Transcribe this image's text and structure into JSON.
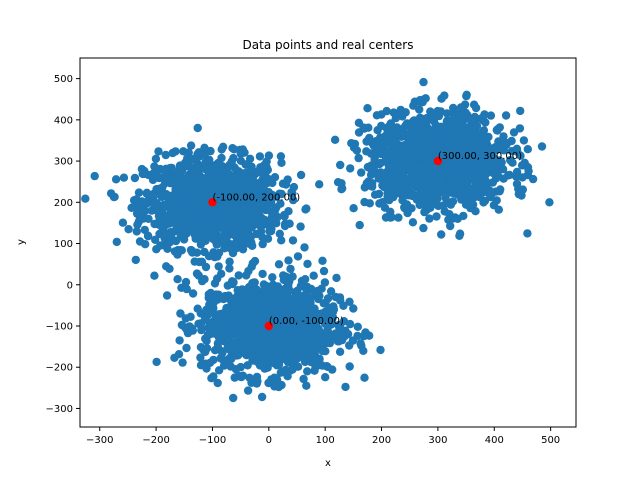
{
  "chart_data": {
    "type": "scatter",
    "title": "Data points and real centers",
    "xlabel": "x",
    "ylabel": "y",
    "xlim": [
      -335,
      545
    ],
    "ylim": [
      -345,
      550
    ],
    "xticks": [
      -300,
      -200,
      -100,
      0,
      100,
      200,
      300,
      400,
      500
    ],
    "yticks": [
      -300,
      -200,
      -100,
      0,
      100,
      200,
      300,
      400,
      500
    ],
    "grid": false,
    "legend": "none",
    "colors": {
      "points": "#1f77b4",
      "centers": "#ff0000"
    },
    "clusters": [
      {
        "center": [
          -100,
          200
        ],
        "spread_x": 60,
        "spread_y": 55,
        "point_count": 1200
      },
      {
        "center": [
          0,
          -100
        ],
        "spread_x": 60,
        "spread_y": 58,
        "point_count": 1200
      },
      {
        "center": [
          300,
          300
        ],
        "spread_x": 62,
        "spread_y": 58,
        "point_count": 1200
      }
    ],
    "centers": [
      {
        "x": -100,
        "y": 200,
        "label": "(-100.00, 200.00)"
      },
      {
        "x": 0,
        "y": -100,
        "label": "(0.00, -100.00)"
      },
      {
        "x": 300,
        "y": 300,
        "label": "(300.00, 300.00)"
      }
    ]
  }
}
